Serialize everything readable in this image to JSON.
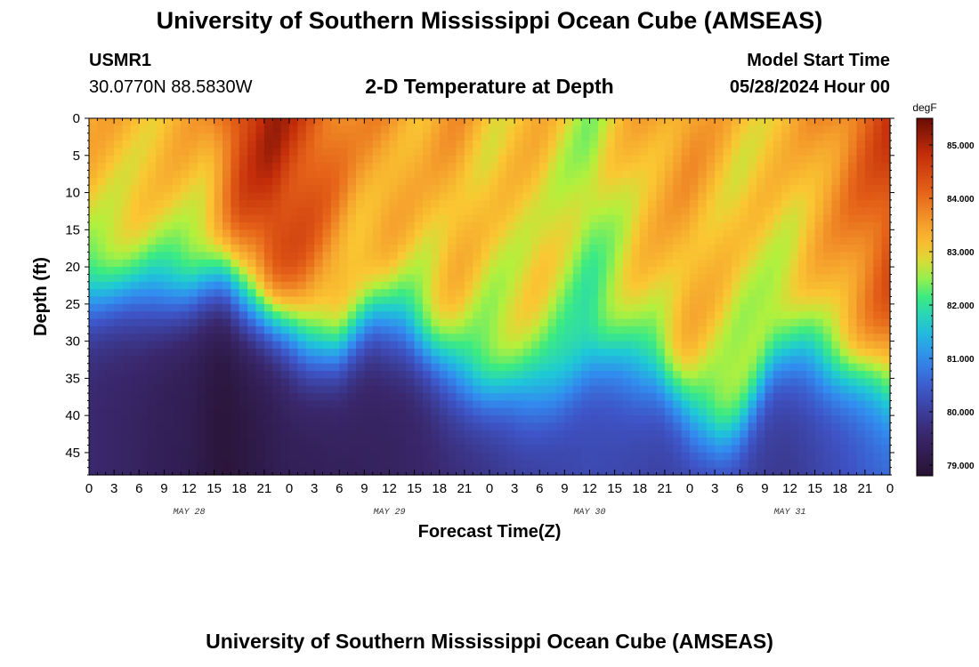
{
  "header": {
    "title": "University of Southern Mississippi Ocean Cube (AMSEAS)",
    "station_id": "USMR1",
    "coords": "30.0770N  88.5830W",
    "plot_title": "2-D Temperature at Depth",
    "model_start_label": "Model Start Time",
    "model_start_value": "05/28/2024 Hour 00"
  },
  "footer": {
    "title": "University of Southern Mississippi Ocean Cube (AMSEAS)"
  },
  "chart_data": {
    "type": "heatmap",
    "title": "2-D Temperature at Depth",
    "xlabel": "Forecast Time(Z)",
    "ylabel": "Depth (ft)",
    "x_tick_labels": [
      "0",
      "3",
      "6",
      "9",
      "12",
      "15",
      "18",
      "21",
      "0",
      "3",
      "6",
      "9",
      "12",
      "15",
      "18",
      "21",
      "0",
      "3",
      "6",
      "9",
      "12",
      "15",
      "18",
      "21",
      "0",
      "3",
      "6",
      "9",
      "12",
      "15",
      "18",
      "21",
      "0"
    ],
    "x_hours_range": [
      0,
      96
    ],
    "date_labels": [
      {
        "text": "MAY 28",
        "hour": 12
      },
      {
        "text": "MAY 29",
        "hour": 36
      },
      {
        "text": "MAY 30",
        "hour": 60
      },
      {
        "text": "MAY 31",
        "hour": 84
      }
    ],
    "y_tick_labels": [
      "0",
      "5",
      "10",
      "15",
      "20",
      "25",
      "30",
      "35",
      "40",
      "45"
    ],
    "y_ticks": [
      0,
      5,
      10,
      15,
      20,
      25,
      30,
      35,
      40,
      45
    ],
    "ylim": [
      0,
      48
    ],
    "colorbar": {
      "unit": "degF",
      "min": 78.8,
      "max": 85.5,
      "tick_labels": [
        "85.000",
        "84.000",
        "83.000",
        "82.000",
        "81.000",
        "80.000",
        "79.000"
      ],
      "tick_values": [
        85,
        84,
        83,
        82,
        81,
        80,
        79
      ]
    },
    "thermocline_depth_ft": {
      "hours": [
        0,
        6,
        12,
        16,
        20,
        26,
        30,
        34,
        38,
        42,
        48,
        52,
        56,
        60,
        64,
        68,
        72,
        76,
        78,
        82,
        86,
        90,
        96
      ],
      "depth": [
        24,
        24,
        23.5,
        22,
        25,
        30,
        31,
        27,
        28,
        33,
        37,
        37.5,
        36,
        33,
        33.5,
        34,
        40,
        43,
        42,
        33,
        32,
        34,
        36
      ]
    },
    "surface_temp_degF": {
      "hours": [
        0,
        8,
        14,
        18,
        22,
        26,
        32,
        36,
        40,
        44,
        48,
        54,
        60,
        66,
        72,
        78,
        84,
        90,
        96
      ],
      "values": [
        83.3,
        83.2,
        83.4,
        84.6,
        85.0,
        84.5,
        83.6,
        83.6,
        83.3,
        83.5,
        83.1,
        83.2,
        82.6,
        83.3,
        83.6,
        83.1,
        83.2,
        83.8,
        84.6
      ]
    },
    "bottom_temp_degF": {
      "hours": [
        0,
        12,
        16,
        24,
        36,
        48,
        60,
        72,
        84,
        96
      ],
      "values": [
        79.6,
        79.2,
        78.9,
        79.3,
        79.4,
        79.8,
        80.2,
        80.0,
        79.9,
        80.6
      ]
    }
  }
}
